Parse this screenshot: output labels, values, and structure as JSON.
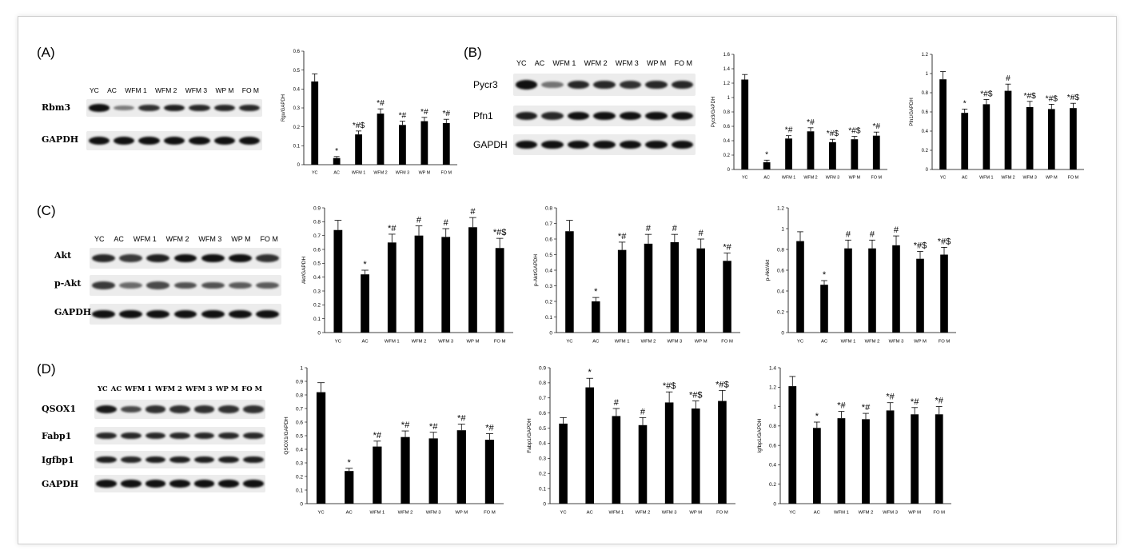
{
  "panels": {
    "A": "(A)",
    "B": "(B)",
    "C": "(C)",
    "D": "(D)"
  },
  "lanes": {
    "A": [
      "YC",
      "AC",
      "WFM 1",
      "WFM 2",
      "WFM 3",
      "WP M",
      "FO M"
    ],
    "B": [
      "YC",
      "AC",
      "WFM 1",
      "WFM 2",
      "WFM 3",
      "WP M",
      "FO M"
    ],
    "C": [
      "YC",
      "AC",
      "WFM 1",
      "WFM 2",
      "WFM 3",
      "WP M",
      "FO M"
    ],
    "D": [
      "YC",
      "AC",
      "WFM 1",
      "WFM 2",
      "WFM 3",
      "WP M",
      "FO M"
    ]
  },
  "blots": {
    "A": [
      "Rbm3",
      "GAPDH"
    ],
    "B": [
      "Pycr3",
      "Pfn1",
      "GAPDH"
    ],
    "C": [
      "Akt",
      "p-Akt",
      "GAPDH"
    ],
    "D": [
      "QSOX1",
      "Fabp1",
      "Igfbp1",
      "GAPDH"
    ]
  },
  "band_intensity": {
    "A": [
      [
        1,
        0.35,
        0.8,
        0.9,
        0.85,
        0.85,
        0.85
      ],
      [
        1,
        1,
        1,
        1,
        1,
        1,
        1
      ]
    ],
    "B": [
      [
        1,
        0.4,
        0.85,
        0.85,
        0.8,
        0.85,
        0.85
      ],
      [
        0.9,
        0.85,
        1,
        1,
        1,
        1,
        1
      ],
      [
        1,
        1,
        1,
        1,
        1,
        1,
        1
      ]
    ],
    "C": [
      [
        0.85,
        0.75,
        0.9,
        1,
        1,
        1,
        0.8
      ],
      [
        0.75,
        0.45,
        0.65,
        0.6,
        0.6,
        0.55,
        0.55
      ],
      [
        1,
        1,
        1,
        1,
        1,
        1,
        1
      ]
    ],
    "D": [
      [
        0.95,
        0.65,
        0.8,
        0.8,
        0.8,
        0.8,
        0.8
      ],
      [
        0.85,
        0.85,
        0.85,
        0.85,
        0.85,
        0.85,
        0.85
      ],
      [
        0.9,
        0.85,
        0.9,
        0.9,
        0.9,
        0.9,
        0.9
      ],
      [
        1,
        1,
        1,
        1,
        1,
        1,
        1
      ]
    ]
  },
  "chart_data": [
    {
      "id": "A1",
      "type": "bar",
      "ylabel": "Rgu/GAPDH",
      "categories": [
        "YC",
        "AC",
        "WFM 1",
        "WFM 2",
        "WFM 3",
        "WP M",
        "FO M"
      ],
      "values": [
        0.44,
        0.035,
        0.16,
        0.27,
        0.21,
        0.23,
        0.22
      ],
      "errors": [
        0.04,
        0.008,
        0.018,
        0.025,
        0.02,
        0.02,
        0.02
      ],
      "annotations": [
        "",
        "*",
        "*#$",
        "*#",
        "*#",
        "*#",
        "*#"
      ],
      "ylim": [
        0,
        0.6
      ],
      "yticks": [
        "0",
        "0.1",
        "0.2",
        "0.3",
        "0.4",
        "0.5",
        "0.6"
      ]
    },
    {
      "id": "B1",
      "type": "bar",
      "ylabel": "Pycr3/GAPDH",
      "categories": [
        "YC",
        "AC",
        "WFM 1",
        "WFM 2",
        "WFM 3",
        "WP M",
        "FO M"
      ],
      "values": [
        1.25,
        0.1,
        0.43,
        0.53,
        0.38,
        0.42,
        0.47
      ],
      "errors": [
        0.07,
        0.03,
        0.04,
        0.05,
        0.04,
        0.04,
        0.05
      ],
      "annotations": [
        "",
        "*",
        "*#",
        "*#",
        "*#$",
        "*#$",
        "*#"
      ],
      "ylim": [
        0,
        1.6
      ],
      "yticks": [
        "0",
        "0.2",
        "0.4",
        "0.6",
        "0.8",
        "1",
        "1.2",
        "1.4",
        "1.6"
      ]
    },
    {
      "id": "B2",
      "type": "bar",
      "ylabel": "Pfn1/GAPDH",
      "categories": [
        "YC",
        "AC",
        "WFM 1",
        "WFM 2",
        "WFM 3",
        "WP M",
        "FO M"
      ],
      "values": [
        0.94,
        0.59,
        0.68,
        0.82,
        0.65,
        0.63,
        0.64
      ],
      "errors": [
        0.08,
        0.04,
        0.05,
        0.07,
        0.06,
        0.05,
        0.05
      ],
      "annotations": [
        "",
        "*",
        "*#$",
        "#",
        "*#$",
        "*#$",
        "*#$"
      ],
      "ylim": [
        0,
        1.2
      ],
      "yticks": [
        "0",
        "0.2",
        "0.4",
        "0.6",
        "0.8",
        "1",
        "1.2"
      ]
    },
    {
      "id": "C1",
      "type": "bar",
      "ylabel": "Akt/GAPDH",
      "categories": [
        "YC",
        "AC",
        "WFM 1",
        "WFM 2",
        "WFM 3",
        "WP M",
        "FO M"
      ],
      "values": [
        0.74,
        0.42,
        0.65,
        0.7,
        0.69,
        0.76,
        0.61
      ],
      "errors": [
        0.07,
        0.03,
        0.06,
        0.07,
        0.06,
        0.07,
        0.07
      ],
      "annotations": [
        "",
        "*",
        "*#",
        "#",
        "#",
        "#",
        "*#$"
      ],
      "ylim": [
        0,
        0.9
      ],
      "yticks": [
        "0",
        "0.1",
        "0.2",
        "0.3",
        "0.4",
        "0.5",
        "0.6",
        "0.7",
        "0.8",
        "0.9"
      ]
    },
    {
      "id": "C2",
      "type": "bar",
      "ylabel": "p-Akt/GAPDH",
      "categories": [
        "YC",
        "AC",
        "WFM 1",
        "WFM 2",
        "WFM 3",
        "WP M",
        "FO M"
      ],
      "values": [
        0.65,
        0.2,
        0.53,
        0.57,
        0.58,
        0.54,
        0.46
      ],
      "errors": [
        0.07,
        0.025,
        0.05,
        0.06,
        0.05,
        0.06,
        0.05
      ],
      "annotations": [
        "",
        "*",
        "*#",
        "#",
        "#",
        "#",
        "*#"
      ],
      "ylim": [
        0,
        0.8
      ],
      "yticks": [
        "0",
        "0.1",
        "0.2",
        "0.3",
        "0.4",
        "0.5",
        "0.6",
        "0.7",
        "0.8"
      ]
    },
    {
      "id": "C3",
      "type": "bar",
      "ylabel": "p-Akt/Akt",
      "categories": [
        "YC",
        "AC",
        "WFM 1",
        "WFM 2",
        "WFM 3",
        "WP M",
        "FO M"
      ],
      "values": [
        0.88,
        0.46,
        0.81,
        0.81,
        0.84,
        0.71,
        0.75
      ],
      "errors": [
        0.09,
        0.04,
        0.08,
        0.08,
        0.09,
        0.07,
        0.07
      ],
      "annotations": [
        "",
        "*",
        "#",
        "#",
        "#",
        "*#$",
        "*#$"
      ],
      "ylim": [
        0,
        1.2
      ],
      "yticks": [
        "0",
        "0.2",
        "0.4",
        "0.6",
        "0.8",
        "1",
        "1.2"
      ]
    },
    {
      "id": "D1",
      "type": "bar",
      "ylabel": "QSOX1/GAPDH",
      "categories": [
        "YC",
        "AC",
        "WFM 1",
        "WFM 2",
        "WFM 3",
        "WP M",
        "FO M"
      ],
      "values": [
        0.82,
        0.24,
        0.42,
        0.49,
        0.48,
        0.54,
        0.47
      ],
      "errors": [
        0.07,
        0.02,
        0.04,
        0.045,
        0.045,
        0.045,
        0.045
      ],
      "annotations": [
        "",
        "*",
        "*#",
        "*#",
        "*#",
        "*#",
        "*#"
      ],
      "ylim": [
        0,
        1
      ],
      "yticks": [
        "0",
        "0.1",
        "0.2",
        "0.3",
        "0.4",
        "0.5",
        "0.6",
        "0.7",
        "0.8",
        "0.9",
        "1"
      ]
    },
    {
      "id": "D2",
      "type": "bar",
      "ylabel": "Fabp1/GAPDH",
      "categories": [
        "YC",
        "AC",
        "WFM 1",
        "WFM 2",
        "WFM 3",
        "WP M",
        "FO M"
      ],
      "values": [
        0.53,
        0.77,
        0.58,
        0.52,
        0.67,
        0.63,
        0.68
      ],
      "errors": [
        0.04,
        0.06,
        0.05,
        0.05,
        0.07,
        0.05,
        0.07
      ],
      "annotations": [
        "",
        "*",
        "#",
        "#",
        "*#$",
        "*#$",
        "*#$"
      ],
      "ylim": [
        0,
        0.9
      ],
      "yticks": [
        "0",
        "0.1",
        "0.2",
        "0.3",
        "0.4",
        "0.5",
        "0.6",
        "0.7",
        "0.8",
        "0.9"
      ]
    },
    {
      "id": "D3",
      "type": "bar",
      "ylabel": "Igfbp1/GAPDH",
      "categories": [
        "YC",
        "AC",
        "WFM 1",
        "WFM 2",
        "WFM 3",
        "WP M",
        "FO M"
      ],
      "values": [
        1.21,
        0.78,
        0.88,
        0.87,
        0.96,
        0.92,
        0.92
      ],
      "errors": [
        0.1,
        0.06,
        0.07,
        0.06,
        0.08,
        0.07,
        0.08
      ],
      "annotations": [
        "",
        "*",
        "*#",
        "*#",
        "*#",
        "*#",
        "*#"
      ],
      "ylim": [
        0,
        1.4
      ],
      "yticks": [
        "0",
        "0.2",
        "0.4",
        "0.6",
        "0.8",
        "1",
        "1.2",
        "1.4"
      ]
    }
  ]
}
